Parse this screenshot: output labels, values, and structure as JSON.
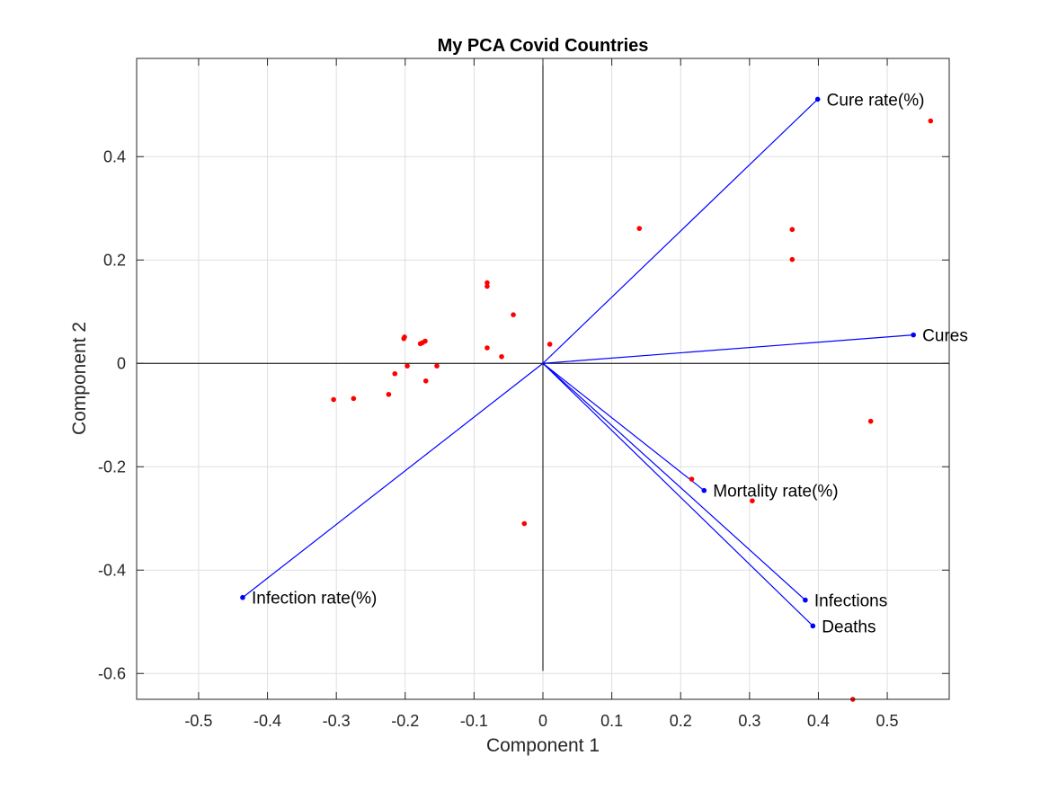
{
  "chart_data": {
    "type": "scatter",
    "title": "My PCA Covid Countries",
    "xlabel": "Component 1",
    "ylabel": "Component 2",
    "xlim": [
      -0.59,
      0.59
    ],
    "ylim": [
      -0.65,
      0.59
    ],
    "grid": true,
    "xticks": [
      -0.5,
      -0.4,
      -0.3,
      -0.2,
      -0.1,
      0,
      0.1,
      0.2,
      0.3,
      0.4,
      0.5
    ],
    "xtick_labels": [
      "-0.5",
      "-0.4",
      "-0.3",
      "-0.2",
      "-0.1",
      "0",
      "0.1",
      "0.2",
      "0.3",
      "0.4",
      "0.5"
    ],
    "yticks": [
      -0.6,
      -0.4,
      -0.2,
      0,
      0.2,
      0.4
    ],
    "ytick_labels": [
      "-0.6",
      "-0.4",
      "-0.2",
      "0",
      "0.2",
      "0.4"
    ],
    "loadings_color": "#0000ff",
    "scores_color": "#ff0000",
    "loadings": [
      {
        "name": "Cure rate(%)",
        "x": 0.399,
        "y": 0.511
      },
      {
        "name": "Cures",
        "x": 0.538,
        "y": 0.055
      },
      {
        "name": "Mortality rate(%)",
        "x": 0.234,
        "y": -0.246
      },
      {
        "name": "Infections",
        "x": 0.381,
        "y": -0.458
      },
      {
        "name": "Deaths",
        "x": 0.392,
        "y": -0.508
      },
      {
        "name": "Infection rate(%)",
        "x": -0.436,
        "y": -0.453
      }
    ],
    "scores": [
      {
        "x": 0.563,
        "y": 0.469
      },
      {
        "x": 0.14,
        "y": 0.261
      },
      {
        "x": 0.362,
        "y": 0.259
      },
      {
        "x": 0.362,
        "y": 0.201
      },
      {
        "x": -0.081,
        "y": 0.156
      },
      {
        "x": -0.081,
        "y": 0.149
      },
      {
        "x": -0.043,
        "y": 0.094
      },
      {
        "x": -0.201,
        "y": 0.051
      },
      {
        "x": -0.202,
        "y": 0.048
      },
      {
        "x": -0.171,
        "y": 0.043
      },
      {
        "x": -0.175,
        "y": 0.04
      },
      {
        "x": -0.178,
        "y": 0.038
      },
      {
        "x": 0.01,
        "y": 0.037
      },
      {
        "x": -0.081,
        "y": 0.03
      },
      {
        "x": -0.06,
        "y": 0.013
      },
      {
        "x": -0.197,
        "y": -0.005
      },
      {
        "x": -0.154,
        "y": -0.005
      },
      {
        "x": -0.215,
        "y": -0.02
      },
      {
        "x": -0.17,
        "y": -0.034
      },
      {
        "x": -0.224,
        "y": -0.06
      },
      {
        "x": -0.275,
        "y": -0.068
      },
      {
        "x": -0.304,
        "y": -0.07
      },
      {
        "x": 0.476,
        "y": -0.112
      },
      {
        "x": 0.216,
        "y": -0.224
      },
      {
        "x": 0.304,
        "y": -0.266
      },
      {
        "x": -0.027,
        "y": -0.31
      },
      {
        "x": 0.45,
        "y": -0.65
      }
    ]
  }
}
